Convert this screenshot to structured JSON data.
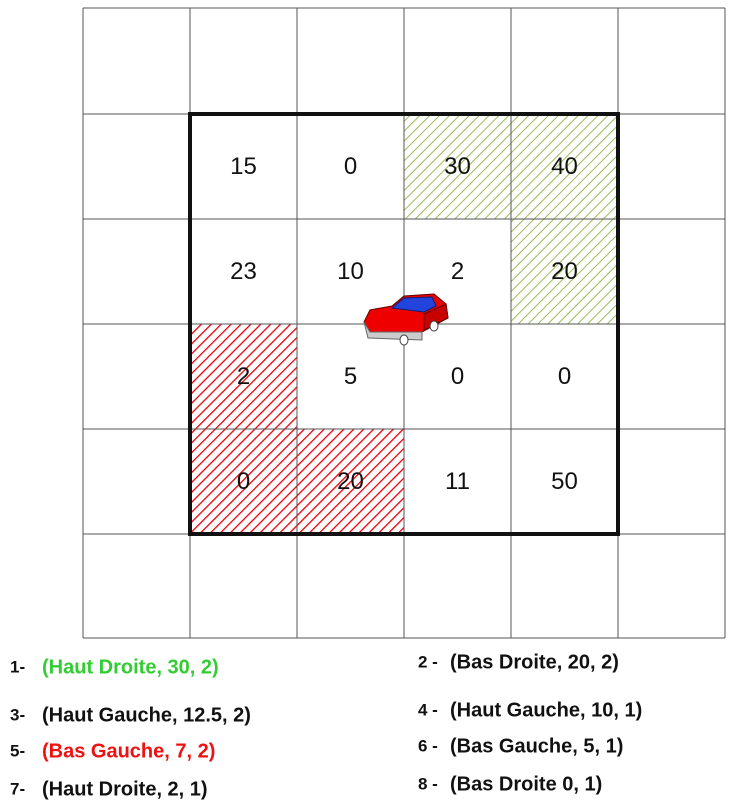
{
  "grid": {
    "rows": [
      [
        {
          "value": 15
        },
        {
          "value": 0
        },
        {
          "value": 30,
          "hatch": "#9bbb59"
        },
        {
          "value": 40,
          "hatch": "#9bbb59"
        }
      ],
      [
        {
          "value": 23
        },
        {
          "value": 10
        },
        {
          "value": 2
        },
        {
          "value": 20,
          "hatch": "#9bbb59"
        }
      ],
      [
        {
          "value": 2,
          "hatch": "#e8000b"
        },
        {
          "value": 5
        },
        {
          "value": 0
        },
        {
          "value": 0
        }
      ],
      [
        {
          "value": 0,
          "hatch": "#e8000b"
        },
        {
          "value": 20,
          "hatch": "#e8000b"
        },
        {
          "value": 11
        },
        {
          "value": 50
        }
      ]
    ]
  },
  "legend": [
    {
      "number": "1-",
      "text": "(Haut Droite, 30, 2)",
      "color": "#33cc33"
    },
    {
      "number": "2 -",
      "text": "(Bas Droite, 20, 2)",
      "color": "#111111"
    },
    {
      "number": "3-",
      "text": "(Haut Gauche, 12.5, 2)",
      "color": "#111111"
    },
    {
      "number": "4 -",
      "text": "(Haut Gauche, 10, 1)",
      "color": "#111111"
    },
    {
      "number": "5-",
      "text": "(Bas Gauche, 7, 2)",
      "color": "#ee1111"
    },
    {
      "number": "6 -",
      "text": "(Bas Gauche, 5, 1)",
      "color": "#111111"
    },
    {
      "number": "7-",
      "text": "(Haut Droite, 2, 1)",
      "color": "#111111"
    },
    {
      "number": "8 -",
      "text": "(Bas Droite 0, 1)",
      "color": "#111111"
    }
  ]
}
